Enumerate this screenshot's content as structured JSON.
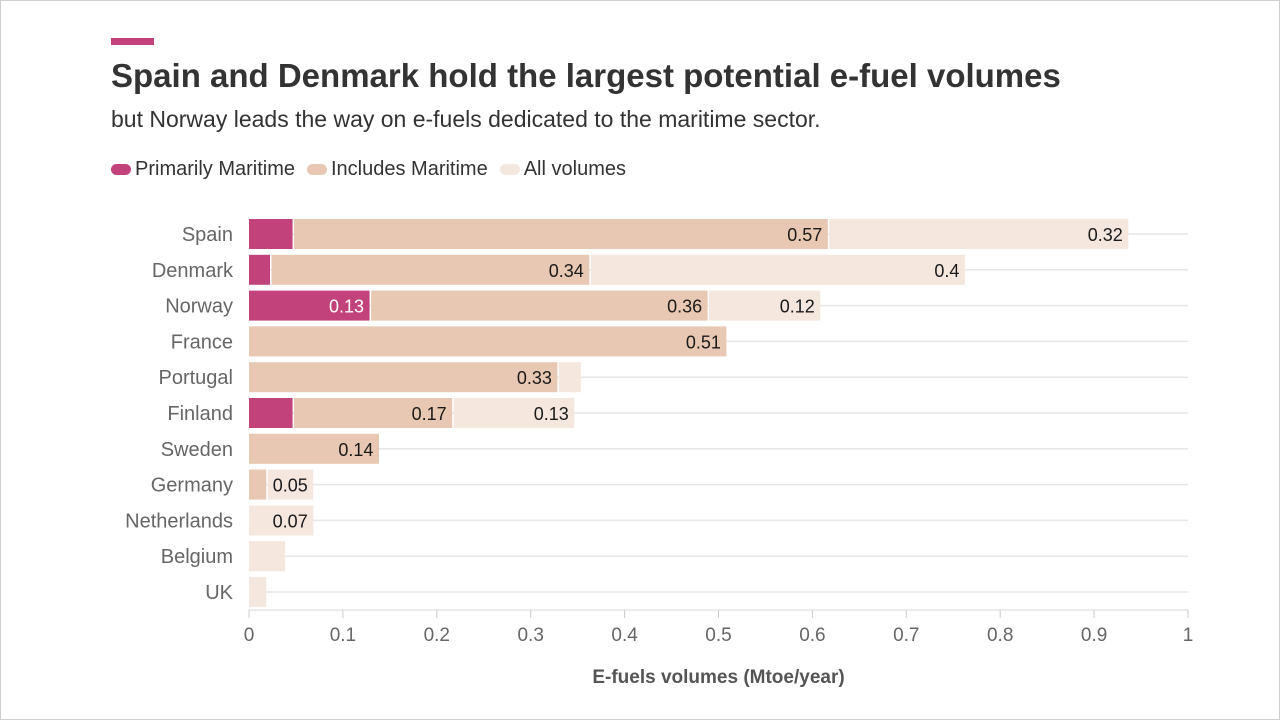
{
  "title": "Spain and Denmark hold the largest potential e-fuel volumes",
  "subtitle": "but Norway leads the way on e-fuels dedicated to the maritime sector.",
  "colors": {
    "accent": "#c2437b",
    "primarily_maritime": "#c2437b",
    "includes_maritime": "#e8c8b2",
    "all_volumes": "#f5e6de",
    "grid": "#e6e6e6",
    "text": "#333333",
    "axis_text": "#666666"
  },
  "legend": [
    {
      "label": "Primarily Maritime",
      "color": "#c2437b"
    },
    {
      "label": "Includes Maritime",
      "color": "#e8c8b2"
    },
    {
      "label": "All volumes",
      "color": "#f5e6de"
    }
  ],
  "chart_data": {
    "type": "bar",
    "orientation": "horizontal",
    "stacked": true,
    "xlabel": "E-fuels volumes (Mtoe/year)",
    "ylabel": "",
    "xlim": [
      0,
      1
    ],
    "xticks": [
      "0",
      "0.1",
      "0.2",
      "0.3",
      "0.4",
      "0.5",
      "0.6",
      "0.7",
      "0.8",
      "0.9",
      "1"
    ],
    "grid": true,
    "legend_position": "top-left",
    "categories": [
      "Spain",
      "Denmark",
      "Norway",
      "France",
      "Portugal",
      "Finland",
      "Sweden",
      "Germany",
      "Netherlands",
      "Belgium",
      "UK"
    ],
    "series": [
      {
        "name": "Primarily Maritime",
        "values": [
          0.048,
          0.024,
          0.13,
          0,
          0,
          0.048,
          0,
          0,
          0,
          0,
          0
        ],
        "labels": [
          "",
          "",
          "0.13",
          "",
          "",
          "",
          "",
          "",
          "",
          "",
          ""
        ]
      },
      {
        "name": "Includes Maritime",
        "values": [
          0.57,
          0.34,
          0.36,
          0.51,
          0.33,
          0.17,
          0.14,
          0.02,
          0,
          0,
          0
        ],
        "labels": [
          "0.57",
          "0.34",
          "0.36",
          "0.51",
          "0.33",
          "0.17",
          "0.14",
          "",
          "",
          "",
          ""
        ]
      },
      {
        "name": "All volumes",
        "values": [
          0.32,
          0.4,
          0.12,
          0,
          0.025,
          0.13,
          0,
          0.05,
          0.07,
          0.04,
          0.02
        ],
        "labels": [
          "0.32",
          "0.4",
          "0.12",
          "",
          "",
          "0.13",
          "",
          "0.05",
          "0.07",
          "",
          ""
        ]
      }
    ]
  }
}
